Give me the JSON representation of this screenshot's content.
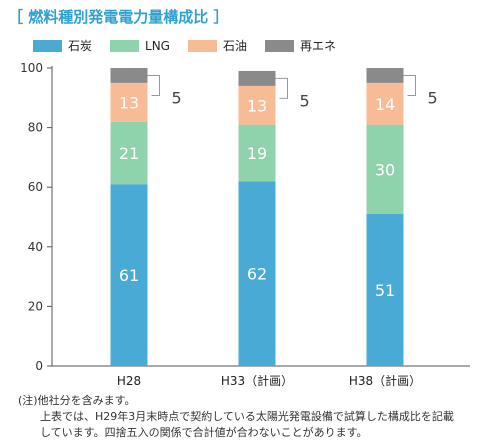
{
  "title": "［ 燃料種別発電電力量構成比 ］",
  "colors": {
    "coal": "#4aaad6",
    "lng": "#8fd3ac",
    "oil": "#f7bb96",
    "renewable": "#8a8a8a",
    "title": "#2fa0d0"
  },
  "chart_data": {
    "type": "bar",
    "stacked": true,
    "categories": [
      "H28",
      "H33（計画）",
      "H38（計画）"
    ],
    "series": [
      {
        "name": "石炭",
        "values": [
          61,
          62,
          51
        ]
      },
      {
        "name": "LNG",
        "values": [
          21,
          19,
          30
        ]
      },
      {
        "name": "石油",
        "values": [
          13,
          13,
          14
        ]
      },
      {
        "name": "再エネ",
        "values": [
          5,
          5,
          5
        ]
      }
    ],
    "ylim": [
      0,
      100
    ],
    "yticks": [
      "0",
      "20",
      "40",
      "60",
      "80",
      "100"
    ],
    "legend_position": "top-left",
    "grid": false
  },
  "notes": {
    "line1": "(注)他社分を含みます。",
    "line2": "上表では、H29年3月末時点で契約している太陽光発電設備で試算した構成比を記載",
    "line3": "しています。四捨五入の関係で合計値が合わないことがあります。"
  }
}
